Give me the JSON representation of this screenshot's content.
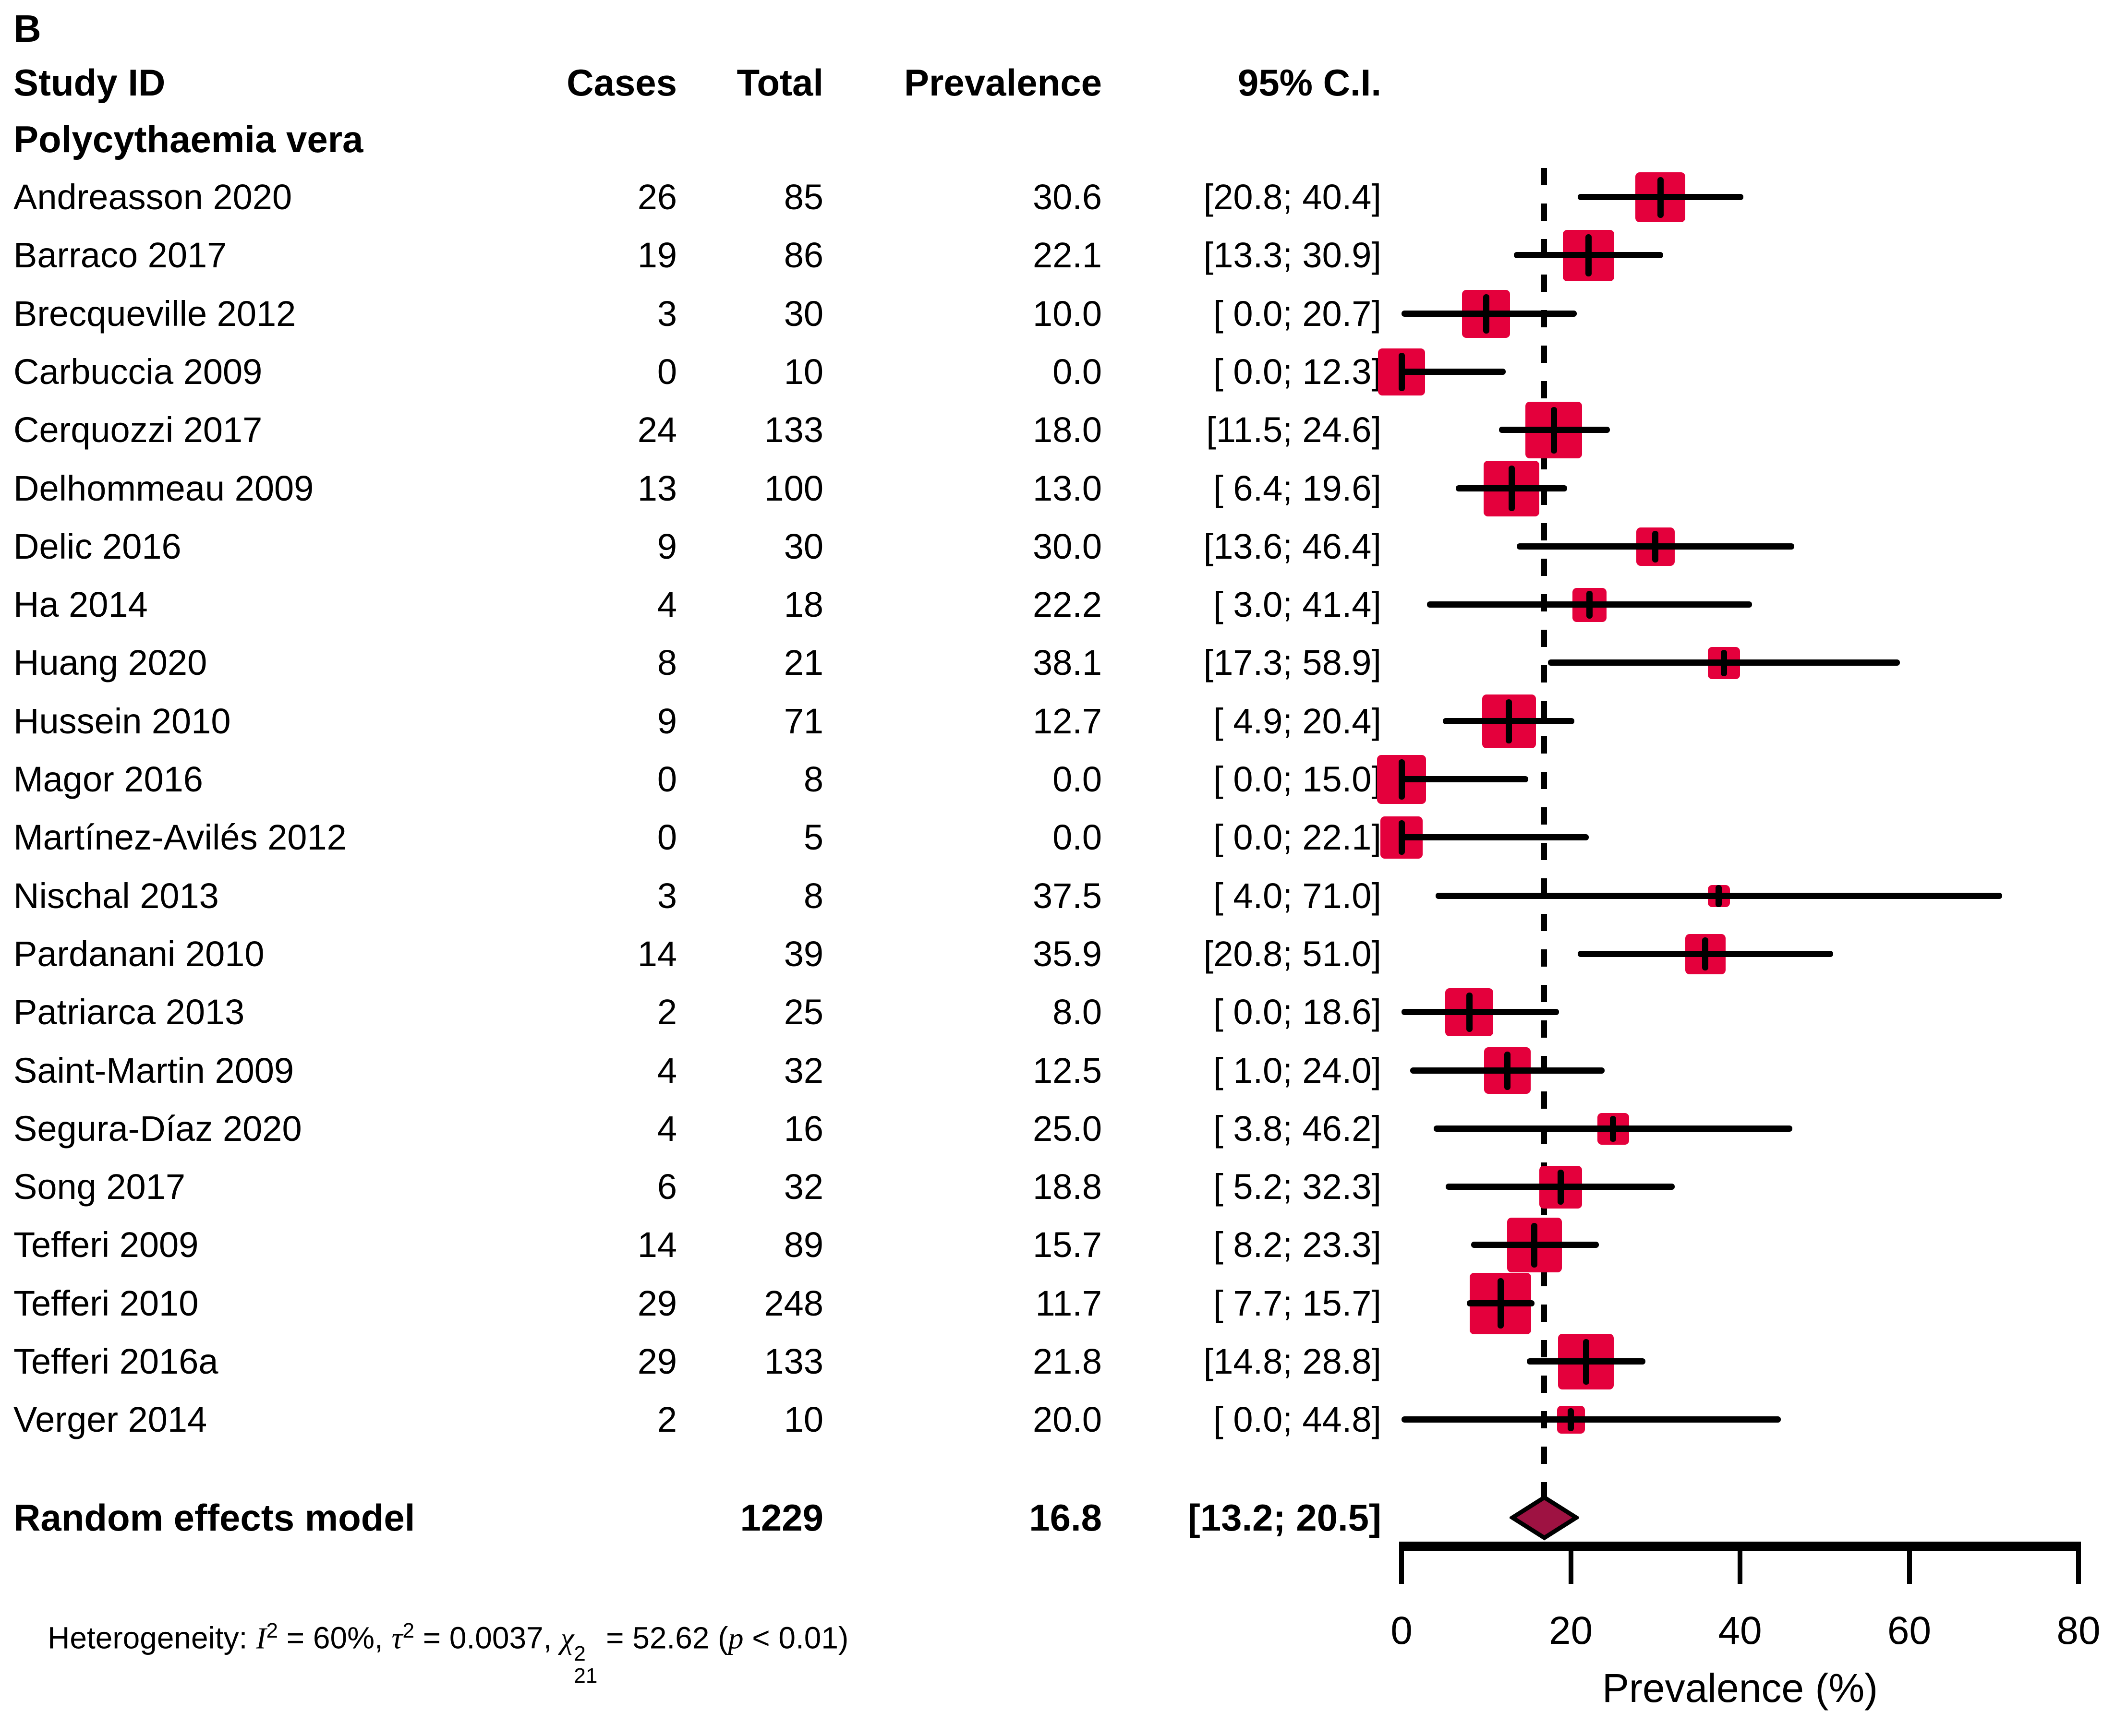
{
  "panel_label": "B",
  "columns": {
    "study": "Study ID",
    "cases": "Cases",
    "total": "Total",
    "prevalence": "Prevalence",
    "ci": "95% C.I."
  },
  "subgroup": "Polycythaemia vera",
  "chart_data": {
    "type": "forest",
    "xlabel": "Prevalence (%)",
    "xlim": [
      0,
      80
    ],
    "x_ticks": [
      "0",
      "20",
      "40",
      "60",
      "80"
    ],
    "pooled_line_x": 16.8,
    "square_color": "#E4003C",
    "diamond_color": "#9E1242",
    "line_color": "#000000",
    "studies": [
      {
        "name": "Andreasson 2020",
        "cases": "26",
        "total": "85",
        "prevalence": "30.6",
        "ci_text": "[20.8; 40.4]",
        "ci_lower": 20.8,
        "ci_upper": 40.4,
        "size": 104
      },
      {
        "name": "Barraco 2017",
        "cases": "19",
        "total": "86",
        "prevalence": "22.1",
        "ci_text": "[13.3; 30.9]",
        "ci_lower": 13.3,
        "ci_upper": 30.9,
        "size": 107
      },
      {
        "name": "Brecqueville 2012",
        "cases": "3",
        "total": "30",
        "prevalence": "10.0",
        "ci_text": "[ 0.0; 20.7]",
        "ci_lower": 0.0,
        "ci_upper": 20.7,
        "size": 100
      },
      {
        "name": "Carbuccia 2009",
        "cases": "0",
        "total": "10",
        "prevalence": "0.0",
        "ci_text": "[ 0.0; 12.3]",
        "ci_lower": 0.0,
        "ci_upper": 12.3,
        "size": 98
      },
      {
        "name": "Cerquozzi 2017",
        "cases": "24",
        "total": "133",
        "prevalence": "18.0",
        "ci_text": "[11.5; 24.6]",
        "ci_lower": 11.5,
        "ci_upper": 24.6,
        "size": 118
      },
      {
        "name": "Delhommeau 2009",
        "cases": "13",
        "total": "100",
        "prevalence": "13.0",
        "ci_text": "[ 6.4; 19.6]",
        "ci_lower": 6.4,
        "ci_upper": 19.6,
        "size": 116
      },
      {
        "name": "Delic 2016",
        "cases": "9",
        "total": "30",
        "prevalence": "30.0",
        "ci_text": "[13.6; 46.4]",
        "ci_lower": 13.6,
        "ci_upper": 46.4,
        "size": 80
      },
      {
        "name": "Ha 2014",
        "cases": "4",
        "total": "18",
        "prevalence": "22.2",
        "ci_text": "[ 3.0; 41.4]",
        "ci_lower": 3.0,
        "ci_upper": 41.4,
        "size": 71
      },
      {
        "name": "Huang 2020",
        "cases": "8",
        "total": "21",
        "prevalence": "38.1",
        "ci_text": "[17.3; 58.9]",
        "ci_lower": 17.3,
        "ci_upper": 58.9,
        "size": 67
      },
      {
        "name": "Hussein 2010",
        "cases": "9",
        "total": "71",
        "prevalence": "12.7",
        "ci_text": "[ 4.9; 20.4]",
        "ci_lower": 4.9,
        "ci_upper": 20.4,
        "size": 112
      },
      {
        "name": "Magor 2016",
        "cases": "0",
        "total": "8",
        "prevalence": "0.0",
        "ci_text": "[ 0.0; 15.0]",
        "ci_lower": 0.0,
        "ci_upper": 15.0,
        "size": 102
      },
      {
        "name": "Martínez-Avilés 2012",
        "cases": "0",
        "total": "5",
        "prevalence": "0.0",
        "ci_text": "[ 0.0; 22.1]",
        "ci_lower": 0.0,
        "ci_upper": 22.1,
        "size": 88
      },
      {
        "name": "Nischal 2013",
        "cases": "3",
        "total": "8",
        "prevalence": "37.5",
        "ci_text": "[ 4.0; 71.0]",
        "ci_lower": 4.0,
        "ci_upper": 71.0,
        "size": 46
      },
      {
        "name": "Pardanani 2010",
        "cases": "14",
        "total": "39",
        "prevalence": "35.9",
        "ci_text": "[20.8; 51.0]",
        "ci_lower": 20.8,
        "ci_upper": 51.0,
        "size": 84
      },
      {
        "name": "Patriarca 2013",
        "cases": "2",
        "total": "25",
        "prevalence": "8.0",
        "ci_text": "[ 0.0; 18.6]",
        "ci_lower": 0.0,
        "ci_upper": 18.6,
        "size": 100
      },
      {
        "name": "Saint-Martin 2009",
        "cases": "4",
        "total": "32",
        "prevalence": "12.5",
        "ci_text": "[ 1.0; 24.0]",
        "ci_lower": 1.0,
        "ci_upper": 24.0,
        "size": 97
      },
      {
        "name": "Segura-Díaz 2020",
        "cases": "4",
        "total": "16",
        "prevalence": "25.0",
        "ci_text": "[ 3.8; 46.2]",
        "ci_lower": 3.8,
        "ci_upper": 46.2,
        "size": 66
      },
      {
        "name": "Song 2017",
        "cases": "6",
        "total": "32",
        "prevalence": "18.8",
        "ci_text": "[ 5.2; 32.3]",
        "ci_lower": 5.2,
        "ci_upper": 32.3,
        "size": 89
      },
      {
        "name": "Tefferi 2009",
        "cases": "14",
        "total": "89",
        "prevalence": "15.7",
        "ci_text": "[ 8.2; 23.3]",
        "ci_lower": 8.2,
        "ci_upper": 23.3,
        "size": 114
      },
      {
        "name": "Tefferi 2010",
        "cases": "29",
        "total": "248",
        "prevalence": "11.7",
        "ci_text": "[ 7.7; 15.7]",
        "ci_lower": 7.7,
        "ci_upper": 15.7,
        "size": 128
      },
      {
        "name": "Tefferi 2016a",
        "cases": "29",
        "total": "133",
        "prevalence": "21.8",
        "ci_text": "[14.8; 28.8]",
        "ci_lower": 14.8,
        "ci_upper": 28.8,
        "size": 116
      },
      {
        "name": "Verger 2014",
        "cases": "2",
        "total": "10",
        "prevalence": "20.0",
        "ci_text": "[ 0.0; 44.8]",
        "ci_lower": 0.0,
        "ci_upper": 44.8,
        "size": 58
      }
    ],
    "summary": {
      "label": "Random effects model",
      "total": "1229",
      "prevalence": "16.8",
      "ci_text": "[13.2; 20.5]",
      "ci_lower": 13.2,
      "ci_upper": 20.5
    }
  },
  "heterogeneity": {
    "parts": [
      "Heterogeneity: ",
      "I",
      "2",
      " = 60%, ",
      "τ",
      "2",
      " = 0.0037, ",
      "χ",
      "2",
      "21",
      " = 52.62 (",
      "p",
      " < 0.01)"
    ]
  }
}
